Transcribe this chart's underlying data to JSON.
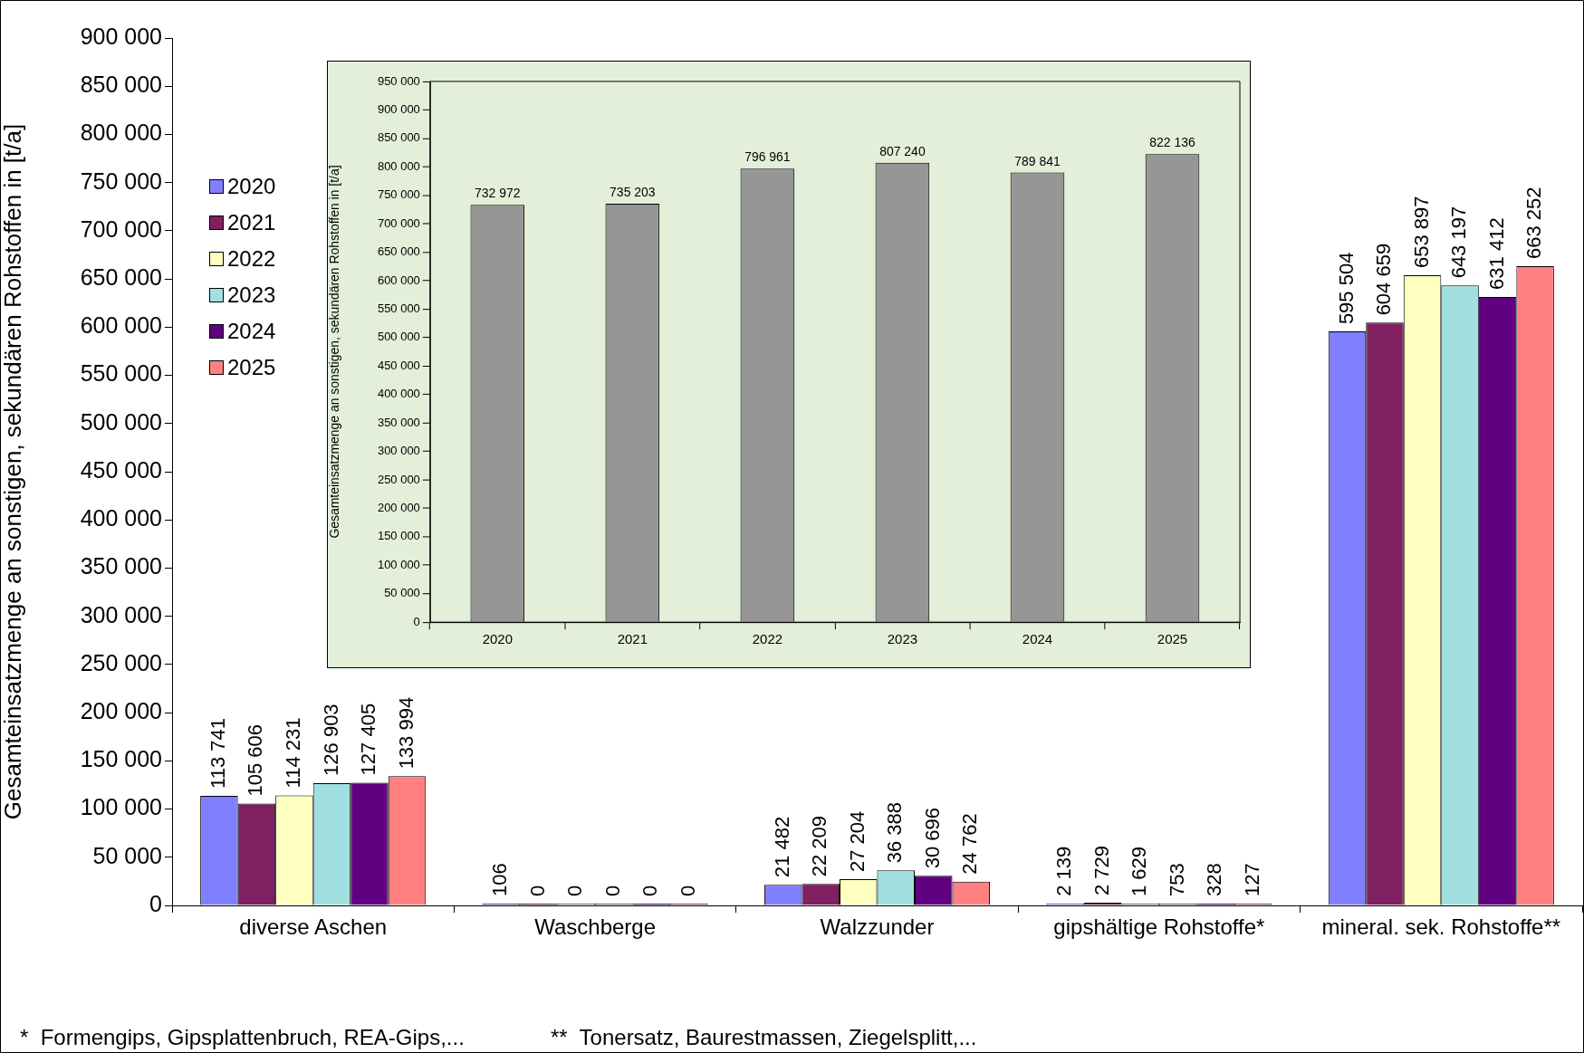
{
  "chart_data": [
    {
      "type": "bar",
      "ylabel": "Gesamteinsatzmenge an sonstigen, sekundären Rohstoffen in [t/a]",
      "categories": [
        "diverse Aschen",
        "Waschberge",
        "Walzzunder",
        "gipshältige Rohstoffe*",
        "mineral. sek. Rohstoffe**"
      ],
      "series": [
        {
          "name": "2020",
          "color": "#8080ff",
          "values": [
            113741,
            106,
            21482,
            2139,
            595504
          ]
        },
        {
          "name": "2021",
          "color": "#802060",
          "values": [
            105606,
            0,
            22209,
            2729,
            604659
          ]
        },
        {
          "name": "2022",
          "color": "#ffffc0",
          "values": [
            114231,
            0,
            27204,
            1629,
            653897
          ]
        },
        {
          "name": "2023",
          "color": "#a0e0e0",
          "values": [
            126903,
            0,
            36388,
            753,
            643197
          ]
        },
        {
          "name": "2024",
          "color": "#600080",
          "values": [
            127405,
            0,
            30696,
            328,
            631412
          ]
        },
        {
          "name": "2025",
          "color": "#ff8080",
          "values": [
            133994,
            0,
            24762,
            127,
            663252
          ]
        }
      ],
      "ylim": [
        0,
        900000
      ],
      "yticks": [
        0,
        50000,
        100000,
        150000,
        200000,
        250000,
        300000,
        350000,
        400000,
        450000,
        500000,
        550000,
        600000,
        650000,
        700000,
        750000,
        800000,
        850000,
        900000
      ],
      "data_labels": true,
      "legend": "top left",
      "grid": false,
      "annotations": [
        "*  Formengips, Gipsplattenbruch, REA-Gips,...",
        "**  Tonersatz, Baurestmassen, Ziegelsplitt,..."
      ]
    },
    {
      "type": "bar",
      "ylabel": "Gesamteinsatzmenge an sonstigen, sekundären Rohstoffen in [t/a]",
      "categories": [
        "2020",
        "2021",
        "2022",
        "2023",
        "2024",
        "2025"
      ],
      "values": [
        732972,
        735203,
        796961,
        807240,
        789841,
        822136
      ],
      "color": "#969696",
      "ylim": [
        0,
        950000
      ],
      "yticks": [
        0,
        50000,
        100000,
        150000,
        200000,
        250000,
        300000,
        350000,
        400000,
        450000,
        500000,
        550000,
        600000,
        650000,
        700000,
        750000,
        800000,
        850000,
        900000,
        950000
      ],
      "data_labels": true,
      "grid": false
    }
  ]
}
